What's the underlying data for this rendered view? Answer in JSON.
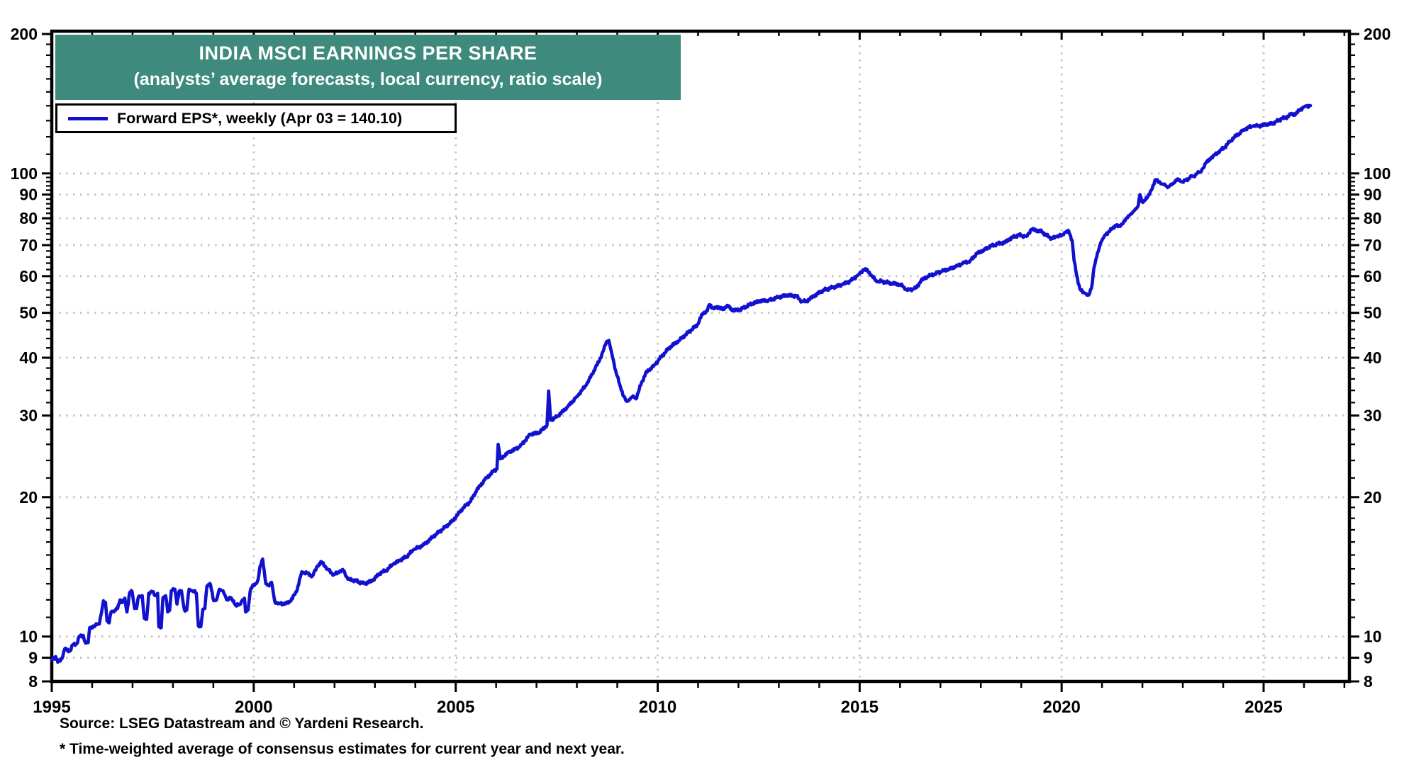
{
  "header": {
    "title": "INDIA MSCI EARNINGS PER SHARE",
    "subtitle": "(analysts’ average forecasts, local currency, ratio scale)"
  },
  "legend": {
    "label": "Forward EPS*, weekly (Apr 03 = 140.10)"
  },
  "footer": {
    "source": "Source: LSEG Datastream and © Yardeni Research.",
    "footnote": "* Time-weighted average of consensus estimates for current year and next year."
  },
  "colors": {
    "accent_teal": "#3E8A7C",
    "series_blue": "#1111CE",
    "gridline": "#C6C6C6",
    "axis": "#000000",
    "background": "#FFFFFF"
  },
  "chart_data": {
    "type": "line",
    "title": "INDIA MSCI EARNINGS PER SHARE",
    "subtitle": "(analysts’ average forecasts, local currency, ratio scale)",
    "y_scale": "log",
    "grid": "dotted",
    "legend_position": "top-left",
    "xlim": [
      1995,
      2027.15
    ],
    "ylim": [
      8,
      203
    ],
    "x_ticks_labeled": [
      1995,
      2000,
      2005,
      2010,
      2015,
      2020,
      2025
    ],
    "x_tick_minor_step": 1,
    "y_ticks_labeled": [
      200,
      100,
      90,
      80,
      70,
      60,
      50,
      40,
      30,
      20,
      10,
      9,
      8
    ],
    "y_ticks_minor": [
      11,
      12,
      13,
      14,
      15,
      16,
      17,
      18,
      19,
      22,
      24,
      26,
      28,
      32,
      34,
      36,
      38,
      42,
      44,
      46,
      48,
      52,
      54,
      56,
      58,
      62,
      64,
      66,
      68,
      72,
      74,
      76,
      78,
      82,
      84,
      86,
      88,
      92,
      94,
      96,
      98,
      110,
      120,
      130,
      140,
      150,
      160,
      170,
      180,
      190
    ],
    "gridlines_h": [
      9,
      10,
      20,
      30,
      40,
      50,
      60,
      70,
      80,
      90,
      100
    ],
    "gridlines_v": [
      2000,
      2005,
      2010,
      2015,
      2020,
      2025
    ],
    "series": [
      {
        "name": "Forward EPS*, weekly",
        "last_point_label": "Apr 03 = 140.10",
        "last_value": 140.1,
        "color": "#1111CE",
        "points": [
          [
            1995.0,
            8.9
          ],
          [
            1995.1,
            9.05
          ],
          [
            1995.15,
            8.8
          ],
          [
            1995.25,
            8.95
          ],
          [
            1995.32,
            9.4
          ],
          [
            1995.45,
            9.3
          ],
          [
            1995.52,
            9.6
          ],
          [
            1995.62,
            9.65
          ],
          [
            1995.68,
            10.0
          ],
          [
            1995.78,
            10.05
          ],
          [
            1995.83,
            9.7
          ],
          [
            1995.9,
            9.7
          ],
          [
            1995.94,
            10.45
          ],
          [
            1996.05,
            10.5
          ],
          [
            1996.12,
            10.65
          ],
          [
            1996.18,
            10.65
          ],
          [
            1996.23,
            11.25
          ],
          [
            1996.28,
            11.95
          ],
          [
            1996.33,
            11.85
          ],
          [
            1996.37,
            10.8
          ],
          [
            1996.42,
            10.7
          ],
          [
            1996.47,
            11.3
          ],
          [
            1996.56,
            11.4
          ],
          [
            1996.63,
            11.5
          ],
          [
            1996.69,
            12.0
          ],
          [
            1996.75,
            11.85
          ],
          [
            1996.81,
            12.1
          ],
          [
            1996.86,
            11.3
          ],
          [
            1996.93,
            12.45
          ],
          [
            1996.99,
            12.5
          ],
          [
            1997.05,
            11.5
          ],
          [
            1997.1,
            11.5
          ],
          [
            1997.15,
            12.2
          ],
          [
            1997.24,
            12.25
          ],
          [
            1997.29,
            10.95
          ],
          [
            1997.35,
            10.9
          ],
          [
            1997.4,
            12.4
          ],
          [
            1997.49,
            12.5
          ],
          [
            1997.56,
            12.25
          ],
          [
            1997.62,
            12.4
          ],
          [
            1997.65,
            10.5
          ],
          [
            1997.71,
            10.45
          ],
          [
            1997.75,
            12.1
          ],
          [
            1997.82,
            12.25
          ],
          [
            1997.87,
            11.3
          ],
          [
            1997.92,
            11.4
          ],
          [
            1997.96,
            12.55
          ],
          [
            1998.05,
            12.65
          ],
          [
            1998.1,
            11.75
          ],
          [
            1998.15,
            12.5
          ],
          [
            1998.21,
            12.55
          ],
          [
            1998.28,
            11.45
          ],
          [
            1998.34,
            11.4
          ],
          [
            1998.4,
            12.65
          ],
          [
            1998.46,
            12.55
          ],
          [
            1998.52,
            12.5
          ],
          [
            1998.58,
            12.4
          ],
          [
            1998.63,
            10.55
          ],
          [
            1998.69,
            10.5
          ],
          [
            1998.74,
            11.45
          ],
          [
            1998.79,
            11.5
          ],
          [
            1998.84,
            12.85
          ],
          [
            1998.93,
            12.95
          ],
          [
            1999.01,
            11.95
          ],
          [
            1999.08,
            12.0
          ],
          [
            1999.15,
            12.65
          ],
          [
            1999.24,
            12.55
          ],
          [
            1999.33,
            12.0
          ],
          [
            1999.42,
            12.1
          ],
          [
            1999.5,
            11.95
          ],
          [
            1999.56,
            11.65
          ],
          [
            1999.65,
            11.75
          ],
          [
            1999.72,
            12.0
          ],
          [
            1999.77,
            12.1
          ],
          [
            1999.8,
            11.3
          ],
          [
            1999.86,
            11.4
          ],
          [
            1999.91,
            12.5
          ],
          [
            1999.99,
            12.95
          ],
          [
            2000.06,
            13.0
          ],
          [
            2000.11,
            13.3
          ],
          [
            2000.16,
            14.2
          ],
          [
            2000.22,
            14.7
          ],
          [
            2000.3,
            13.0
          ],
          [
            2000.36,
            12.9
          ],
          [
            2000.44,
            13.1
          ],
          [
            2000.52,
            11.9
          ],
          [
            2000.62,
            11.8
          ],
          [
            2000.76,
            11.75
          ],
          [
            2000.9,
            11.9
          ],
          [
            2001.06,
            12.5
          ],
          [
            2001.19,
            13.8
          ],
          [
            2001.32,
            13.7
          ],
          [
            2001.45,
            13.5
          ],
          [
            2001.58,
            14.2
          ],
          [
            2001.68,
            14.5
          ],
          [
            2001.82,
            14.0
          ],
          [
            2001.98,
            13.6
          ],
          [
            2002.12,
            13.8
          ],
          [
            2002.22,
            13.9
          ],
          [
            2002.33,
            13.3
          ],
          [
            2002.52,
            13.2
          ],
          [
            2002.73,
            13.0
          ],
          [
            2002.94,
            13.2
          ],
          [
            2003.12,
            13.7
          ],
          [
            2003.28,
            13.9
          ],
          [
            2003.46,
            14.35
          ],
          [
            2003.62,
            14.6
          ],
          [
            2003.79,
            14.9
          ],
          [
            2003.96,
            15.4
          ],
          [
            2004.22,
            15.8
          ],
          [
            2004.5,
            16.6
          ],
          [
            2004.73,
            17.2
          ],
          [
            2004.93,
            17.8
          ],
          [
            2005.17,
            18.9
          ],
          [
            2005.37,
            19.6
          ],
          [
            2005.52,
            20.7
          ],
          [
            2005.72,
            21.8
          ],
          [
            2005.92,
            22.7
          ],
          [
            2006.02,
            23.0
          ],
          [
            2006.05,
            26.0
          ],
          [
            2006.1,
            24.2
          ],
          [
            2006.32,
            25.0
          ],
          [
            2006.59,
            25.7
          ],
          [
            2006.84,
            27.3
          ],
          [
            2007.07,
            27.6
          ],
          [
            2007.26,
            28.6
          ],
          [
            2007.3,
            33.9
          ],
          [
            2007.35,
            29.3
          ],
          [
            2007.5,
            29.8
          ],
          [
            2007.77,
            31.3
          ],
          [
            2008.0,
            33.0
          ],
          [
            2008.24,
            35.0
          ],
          [
            2008.42,
            37.5
          ],
          [
            2008.56,
            39.5
          ],
          [
            2008.66,
            41.5
          ],
          [
            2008.73,
            43.3
          ],
          [
            2008.79,
            43.6
          ],
          [
            2008.86,
            41.0
          ],
          [
            2008.96,
            37.5
          ],
          [
            2009.06,
            35.0
          ],
          [
            2009.16,
            33.0
          ],
          [
            2009.23,
            32.2
          ],
          [
            2009.31,
            32.5
          ],
          [
            2009.39,
            33.1
          ],
          [
            2009.46,
            32.6
          ],
          [
            2009.58,
            34.9
          ],
          [
            2009.7,
            37.0
          ],
          [
            2009.82,
            37.9
          ],
          [
            2009.91,
            38.5
          ],
          [
            2010.05,
            39.8
          ],
          [
            2010.28,
            42.0
          ],
          [
            2010.53,
            43.6
          ],
          [
            2010.75,
            45.3
          ],
          [
            2010.98,
            47.1
          ],
          [
            2011.11,
            49.8
          ],
          [
            2011.23,
            50.5
          ],
          [
            2011.28,
            52.1
          ],
          [
            2011.39,
            51.0
          ],
          [
            2011.51,
            51.5
          ],
          [
            2011.61,
            50.8
          ],
          [
            2011.72,
            51.9
          ],
          [
            2011.86,
            50.6
          ],
          [
            2012.04,
            50.8
          ],
          [
            2012.28,
            52.1
          ],
          [
            2012.51,
            53.0
          ],
          [
            2012.74,
            53.2
          ],
          [
            2012.98,
            54.0
          ],
          [
            2013.21,
            54.6
          ],
          [
            2013.44,
            54.3
          ],
          [
            2013.57,
            52.9
          ],
          [
            2013.69,
            53.0
          ],
          [
            2013.86,
            54.3
          ],
          [
            2014.09,
            55.9
          ],
          [
            2014.32,
            56.7
          ],
          [
            2014.57,
            57.5
          ],
          [
            2014.79,
            58.7
          ],
          [
            2014.97,
            60.5
          ],
          [
            2015.1,
            62.0
          ],
          [
            2015.2,
            61.7
          ],
          [
            2015.31,
            60.0
          ],
          [
            2015.43,
            58.3
          ],
          [
            2015.54,
            58.5
          ],
          [
            2015.78,
            57.9
          ],
          [
            2016.0,
            57.6
          ],
          [
            2016.1,
            56.8
          ],
          [
            2016.18,
            55.9
          ],
          [
            2016.35,
            56.4
          ],
          [
            2016.41,
            56.7
          ],
          [
            2016.52,
            58.7
          ],
          [
            2016.69,
            60.0
          ],
          [
            2016.86,
            60.7
          ],
          [
            2017.04,
            61.5
          ],
          [
            2017.21,
            62.2
          ],
          [
            2017.38,
            62.9
          ],
          [
            2017.55,
            63.9
          ],
          [
            2017.73,
            64.7
          ],
          [
            2017.9,
            67.1
          ],
          [
            2018.08,
            68.4
          ],
          [
            2018.25,
            69.7
          ],
          [
            2018.43,
            70.5
          ],
          [
            2018.6,
            71.0
          ],
          [
            2018.78,
            72.8
          ],
          [
            2018.95,
            73.6
          ],
          [
            2019.13,
            73.1
          ],
          [
            2019.25,
            75.7
          ],
          [
            2019.36,
            75.4
          ],
          [
            2019.51,
            74.9
          ],
          [
            2019.61,
            73.6
          ],
          [
            2019.77,
            72.3
          ],
          [
            2019.88,
            73.1
          ],
          [
            2020.0,
            73.5
          ],
          [
            2020.09,
            74.6
          ],
          [
            2020.18,
            74.9
          ],
          [
            2020.26,
            71.7
          ],
          [
            2020.31,
            64.7
          ],
          [
            2020.37,
            60.4
          ],
          [
            2020.45,
            56.4
          ],
          [
            2020.52,
            55.3
          ],
          [
            2020.59,
            55.0
          ],
          [
            2020.67,
            54.6
          ],
          [
            2020.74,
            56.5
          ],
          [
            2020.8,
            62.5
          ],
          [
            2020.87,
            66.1
          ],
          [
            2020.92,
            68.5
          ],
          [
            2020.97,
            70.9
          ],
          [
            2021.06,
            73.4
          ],
          [
            2021.17,
            74.9
          ],
          [
            2021.26,
            76.1
          ],
          [
            2021.34,
            77.3
          ],
          [
            2021.41,
            76.8
          ],
          [
            2021.5,
            77.7
          ],
          [
            2021.59,
            79.7
          ],
          [
            2021.67,
            81.1
          ],
          [
            2021.76,
            82.5
          ],
          [
            2021.85,
            83.9
          ],
          [
            2021.9,
            85.4
          ],
          [
            2021.94,
            90.0
          ],
          [
            2021.99,
            86.8
          ],
          [
            2022.04,
            87.4
          ],
          [
            2022.13,
            88.9
          ],
          [
            2022.22,
            92.0
          ],
          [
            2022.33,
            97.0
          ],
          [
            2022.43,
            95.9
          ],
          [
            2022.48,
            94.9
          ],
          [
            2022.57,
            94.2
          ],
          [
            2022.64,
            93.5
          ],
          [
            2022.73,
            94.5
          ],
          [
            2022.82,
            96.6
          ],
          [
            2022.92,
            97.0
          ],
          [
            2022.99,
            95.9
          ],
          [
            2023.08,
            96.6
          ],
          [
            2023.17,
            97.7
          ],
          [
            2023.22,
            98.8
          ],
          [
            2023.27,
            98.4
          ],
          [
            2023.36,
            100.3
          ],
          [
            2023.43,
            100.6
          ],
          [
            2023.48,
            102.2
          ],
          [
            2023.57,
            105.2
          ],
          [
            2023.69,
            107.8
          ],
          [
            2023.8,
            109.7
          ],
          [
            2023.92,
            112.0
          ],
          [
            2024.04,
            114.0
          ],
          [
            2024.15,
            116.8
          ],
          [
            2024.28,
            119.9
          ],
          [
            2024.4,
            122.0
          ],
          [
            2024.5,
            124.2
          ],
          [
            2024.62,
            125.6
          ],
          [
            2024.74,
            126.5
          ],
          [
            2024.85,
            126.5
          ],
          [
            2024.97,
            127.0
          ],
          [
            2025.09,
            127.9
          ],
          [
            2025.2,
            127.9
          ],
          [
            2025.32,
            129.4
          ],
          [
            2025.45,
            131.4
          ],
          [
            2025.55,
            131.9
          ],
          [
            2025.67,
            134.0
          ],
          [
            2025.8,
            134.5
          ],
          [
            2025.9,
            137.2
          ],
          [
            2026.03,
            139.8
          ],
          [
            2026.16,
            140.1
          ]
        ]
      }
    ]
  }
}
